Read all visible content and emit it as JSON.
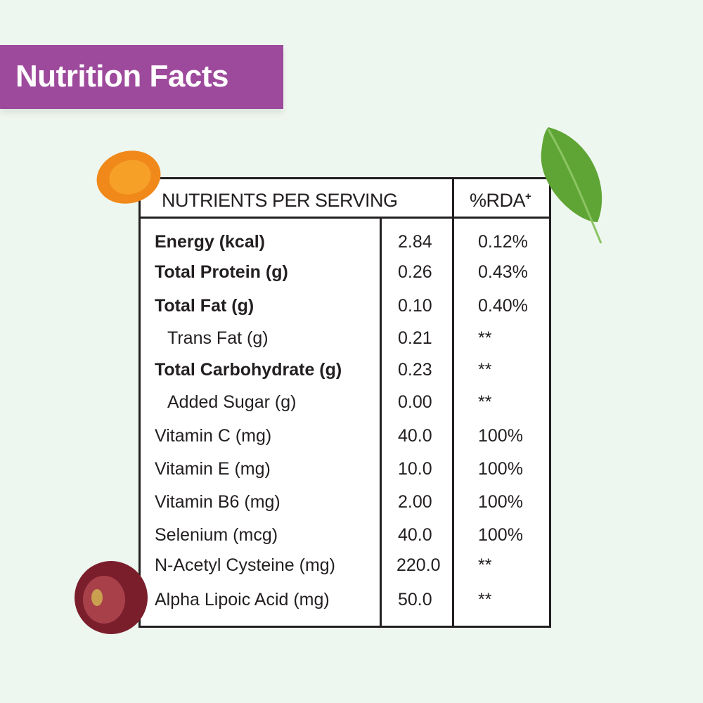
{
  "title": "Nutrition Facts",
  "colors": {
    "banner": "#9e4a9c",
    "background": "#eef7ef",
    "border": "#231f20"
  },
  "table": {
    "header_nutrients": "NUTRIENTS PER SERVING",
    "header_rda": "%RDA",
    "header_rda_mark": "+",
    "rows": [
      {
        "name": "Energy (kcal)",
        "value": "2.84",
        "rda": "0.12%"
      },
      {
        "name": "Total Protein (g)",
        "value": "0.26",
        "rda": "0.43%"
      },
      {
        "name": "Total Fat (g)",
        "value": "0.10",
        "rda": "0.40%"
      },
      {
        "name": "Trans Fat (g)",
        "value": "0.21",
        "rda": "**"
      },
      {
        "name": "Total Carbohydrate (g)",
        "value": "0.23",
        "rda": "**"
      },
      {
        "name": "Added Sugar (g)",
        "value": "0.00",
        "rda": "**"
      },
      {
        "name": "Vitamin C (mg)",
        "value": "40.0",
        "rda": "100%"
      },
      {
        "name": "Vitamin E (mg)",
        "value": "10.0",
        "rda": "100%"
      },
      {
        "name": "Vitamin B6 (mg)",
        "value": "2.00",
        "rda": "100%"
      },
      {
        "name": "Selenium (mcg)",
        "value": "40.0",
        "rda": "100%"
      },
      {
        "name": "N-Acetyl Cysteine (mg)",
        "value": "220.0",
        "rda": "**"
      },
      {
        "name": "Alpha Lipoic Acid (mg)",
        "value": "50.0",
        "rda": "**"
      }
    ]
  },
  "decorations": [
    "turmeric-slice",
    "basil-leaf",
    "grape"
  ]
}
